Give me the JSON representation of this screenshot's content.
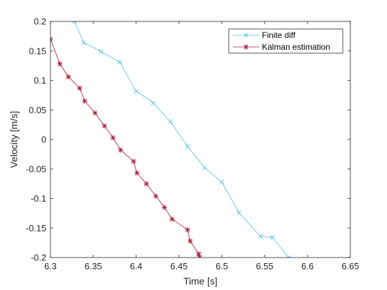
{
  "chart_data": {
    "type": "line",
    "xlabel": "Time [s]",
    "ylabel": "Velocity [m/s]",
    "xlim": [
      6.3,
      6.65
    ],
    "ylim": [
      -0.2,
      0.2
    ],
    "xticks": [
      "6.3",
      "6.35",
      "6.4",
      "6.45",
      "6.5",
      "6.55",
      "6.6",
      "6.65"
    ],
    "yticks": [
      "0.2",
      "0.15",
      "0.1",
      "0.05",
      "0",
      "-0.05",
      "-0.1",
      "-0.15",
      "-0.2"
    ],
    "xtick_values": [
      6.3,
      6.35,
      6.4,
      6.45,
      6.5,
      6.55,
      6.6,
      6.65
    ],
    "ytick_values": [
      0.2,
      0.15,
      0.1,
      0.05,
      0,
      -0.05,
      -0.1,
      -0.15,
      -0.2
    ],
    "grid": false,
    "legend_position": "top-right",
    "series": [
      {
        "name": "Finite diff",
        "color": "#4DBEEE",
        "marker": "x",
        "x": [
          6.328,
          6.339,
          6.359,
          6.381,
          6.4,
          6.42,
          6.44,
          6.46,
          6.48,
          6.5,
          6.52,
          6.545,
          6.559,
          6.578
        ],
        "y": [
          0.2,
          0.164,
          0.149,
          0.131,
          0.082,
          0.062,
          0.03,
          -0.012,
          -0.048,
          -0.072,
          -0.124,
          -0.164,
          -0.166,
          -0.2
        ]
      },
      {
        "name": "Kalman estimation",
        "color": "#A2142F",
        "marker": "*",
        "x": [
          6.3,
          6.311,
          6.321,
          6.334,
          6.34,
          6.352,
          6.363,
          6.373,
          6.382,
          6.397,
          6.401,
          6.412,
          6.423,
          6.433,
          6.442,
          6.46,
          6.463,
          6.473,
          6.474
        ],
        "y": [
          0.17,
          0.128,
          0.106,
          0.087,
          0.065,
          0.045,
          0.023,
          0.003,
          -0.018,
          -0.037,
          -0.057,
          -0.075,
          -0.096,
          -0.115,
          -0.135,
          -0.153,
          -0.172,
          -0.194,
          -0.2
        ]
      }
    ]
  }
}
